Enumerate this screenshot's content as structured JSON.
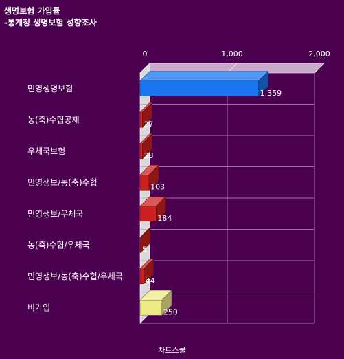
{
  "title_line1": "생명보험 가입률",
  "title_line2": "-통계청 생명보험 성향조사",
  "footer": "차트스쿨",
  "colors": {
    "background": "#4b0050",
    "grid": "#b89ac0",
    "floor_top": "#c9a9cc",
    "wall_left": "#d9d9d9",
    "blue": "#1877f0",
    "red": "#cc2020",
    "yellow": "#eeea88"
  },
  "chart_data": {
    "type": "bar",
    "orientation": "horizontal",
    "three_d": true,
    "categories": [
      "민영생명보험",
      "농(축)수협공제",
      "우체국보험",
      "민영생보/농(축)수협",
      "민영생보/우체국",
      "농(축)수협/우체국",
      "민영생보/농(축)수협/우체국",
      "비가입"
    ],
    "values": [
      1359,
      27,
      28,
      103,
      184,
      5,
      44,
      250
    ],
    "value_labels": [
      "1,359",
      "27",
      "28",
      "103",
      "184",
      "5",
      "44",
      "250"
    ],
    "bar_colors": [
      "#1877f0",
      "#cc2020",
      "#cc2020",
      "#cc2020",
      "#cc2020",
      "#cc2020",
      "#cc2020",
      "#eeea88"
    ],
    "xlim": [
      0,
      2000
    ],
    "ticks": [
      0,
      1000,
      2000
    ],
    "tick_labels": [
      "0",
      "1,000",
      "2,000"
    ],
    "grid": true,
    "legend": "none"
  }
}
